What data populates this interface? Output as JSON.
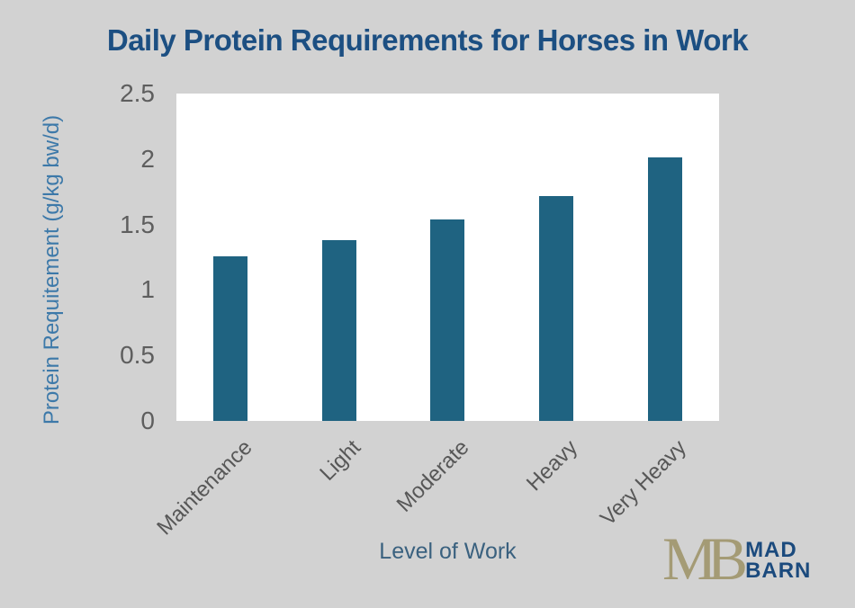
{
  "chart_data": {
    "type": "bar",
    "title": "Daily Protein Requirements for Horses in Work",
    "xlabel": "Level of Work",
    "ylabel": "Protein Requitement (g/kg bw/d)",
    "categories": [
      "Maintenance",
      "Light",
      "Moderate",
      "Heavy",
      "Very Heavy"
    ],
    "values": [
      1.26,
      1.38,
      1.54,
      1.72,
      2.01
    ],
    "ylim": [
      0,
      2.5
    ],
    "yticks": [
      0,
      0.5,
      1,
      1.5,
      2,
      2.5
    ],
    "grid": false,
    "legend": "none",
    "bar_color": "#1f6381",
    "plot_background": "#ffffff",
    "canvas_background": "#d2d2d2",
    "title_color": "#1c4f82",
    "ylabel_color": "#3d79a9",
    "xlabel_color": "#3a617f",
    "tick_color": "#5e5e5e"
  },
  "logo": {
    "monogram": "MB",
    "line1": "MAD",
    "line2": "BARN",
    "monogram_color": "#a49b75",
    "text_color": "#1b4a7d"
  }
}
